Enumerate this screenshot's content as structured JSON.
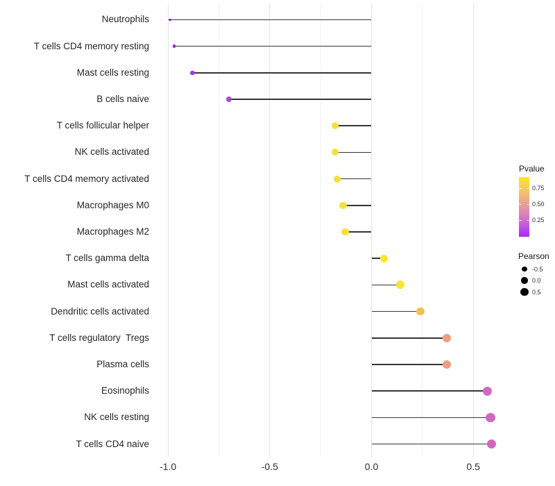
{
  "chart_data": {
    "type": "lollipop",
    "title": "",
    "xlabel": "",
    "ylabel": "",
    "grid": true,
    "x_axis": {
      "range": [
        -1.068,
        0.668
      ],
      "tick_labels": [
        "-1.0",
        "-0.5",
        "0.0",
        "0.5"
      ],
      "tick_values": [
        -1.0,
        -0.5,
        0.0,
        0.5
      ],
      "minor_tick_values": [
        -0.75,
        -0.25,
        0.25
      ]
    },
    "baseline_value": 0.0,
    "categories": [
      "Neutrophils",
      "T cells CD4 memory resting",
      "Mast cells resting",
      "B cells naive",
      "T cells follicular helper",
      "NK cells activated",
      "T cells CD4 memory activated",
      "Macrophages M0",
      "Macrophages M2",
      "T cells gamma delta",
      "Mast cells activated",
      "Dendritic cells activated",
      "T cells regulatory  Tregs",
      "Plasma cells",
      "Eosinophils",
      "NK cells resting",
      "T cells CD4 naive"
    ],
    "points": [
      {
        "label": "Neutrophils",
        "pearson": -0.99,
        "color": "#8A1FC4",
        "size": 3.5
      },
      {
        "label": "T cells CD4 memory resting",
        "pearson": -0.97,
        "color": "#9229CC",
        "size": 4.5
      },
      {
        "label": "Mast cells resting",
        "pearson": -0.88,
        "color": "#A136DE",
        "size": 6.5
      },
      {
        "label": "B cells naive",
        "pearson": -0.7,
        "color": "#AB4CD4",
        "size": 8.5
      },
      {
        "label": "T cells follicular helper",
        "pearson": -0.18,
        "color": "#F3E03C",
        "size": 10
      },
      {
        "label": "NK cells activated",
        "pearson": -0.18,
        "color": "#F3E03C",
        "size": 10
      },
      {
        "label": "T cells CD4 memory activated",
        "pearson": -0.17,
        "color": "#F3E03C",
        "size": 10
      },
      {
        "label": "Macrophages M0",
        "pearson": -0.14,
        "color": "#F4E139",
        "size": 10.5
      },
      {
        "label": "Macrophages M2",
        "pearson": -0.13,
        "color": "#F4E139",
        "size": 10.5
      },
      {
        "label": "T cells gamma delta",
        "pearson": 0.06,
        "color": "#F7E82A",
        "size": 11
      },
      {
        "label": "Mast cells activated",
        "pearson": 0.14,
        "color": "#F6E532",
        "size": 12
      },
      {
        "label": "Dendritic cells activated",
        "pearson": 0.24,
        "color": "#EDC155",
        "size": 11.5
      },
      {
        "label": "T cells regulatory  Tregs",
        "pearson": 0.37,
        "color": "#EB9E80",
        "size": 12.5
      },
      {
        "label": "Plasma cells",
        "pearson": 0.37,
        "color": "#EB9E80",
        "size": 12.5
      },
      {
        "label": "Eosinophils",
        "pearson": 0.57,
        "color": "#D269C0",
        "size": 13
      },
      {
        "label": "NK cells resting",
        "pearson": 0.585,
        "color": "#D167BF",
        "size": 13.5
      },
      {
        "label": "T cells CD4 naive",
        "pearson": 0.59,
        "color": "#D167BF",
        "size": 13.5
      }
    ],
    "legend_pvalue": {
      "title": "Pvalue",
      "tick_labels": [
        "0.75",
        "0.50",
        "0.25"
      ],
      "tick_values": [
        0.75,
        0.5,
        0.25
      ],
      "gradient_top_to_bottom": [
        "#F9E721",
        "#F3BC71",
        "#E18FA8",
        "#C45CDC",
        "#A82CF2"
      ]
    },
    "legend_pearson": {
      "title": "Pearson",
      "dot_color": "#000000",
      "items": [
        {
          "label": "-0.5",
          "size": 7.5
        },
        {
          "label": "0.0",
          "size": 9.5
        },
        {
          "label": "0.5",
          "size": 11.5
        }
      ]
    }
  },
  "style_colors": {
    "stem": "#343434",
    "grid_major": "#e4e4e4",
    "grid_minor": "#f2f2f2",
    "axis_text": "#2e2e2e",
    "background": "#ffffff"
  }
}
